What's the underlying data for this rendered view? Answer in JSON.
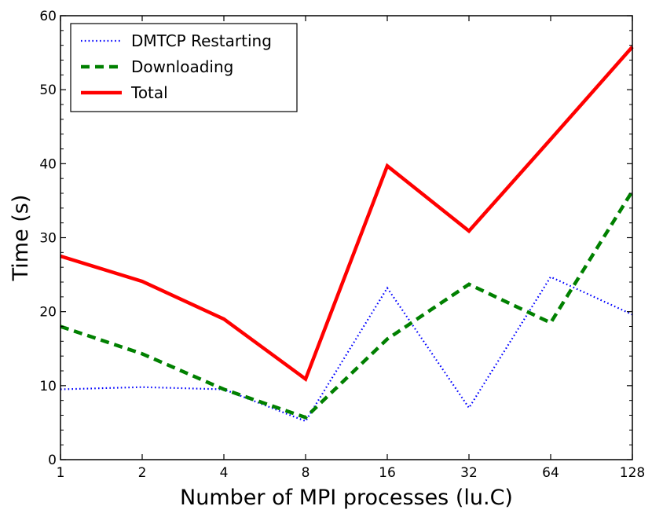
{
  "chart_data": {
    "type": "line",
    "title": "",
    "xlabel": "Number of MPI processes (lu.C)",
    "ylabel": "Time (s)",
    "categories": [
      "1",
      "2",
      "4",
      "8",
      "16",
      "32",
      "64",
      "128"
    ],
    "ylim": [
      0,
      60
    ],
    "yticks": [
      "0",
      "10",
      "20",
      "30",
      "40",
      "50",
      "60"
    ],
    "grid": false,
    "legend_position": "top-left",
    "series": [
      {
        "name": "DMTCP Restarting",
        "color": "#0000ff",
        "style": "dotted",
        "values": [
          9.5,
          9.8,
          9.5,
          5.2,
          23.2,
          7.0,
          24.7,
          19.6
        ]
      },
      {
        "name": "Downloading",
        "color": "#008000",
        "style": "dashed",
        "values": [
          18.0,
          14.3,
          9.5,
          5.7,
          16.3,
          23.7,
          18.5,
          36.3
        ]
      },
      {
        "name": "Total",
        "color": "#ff0000",
        "style": "solid",
        "values": [
          27.5,
          24.1,
          19.0,
          10.9,
          39.7,
          30.9,
          43.3,
          55.8
        ]
      }
    ]
  }
}
